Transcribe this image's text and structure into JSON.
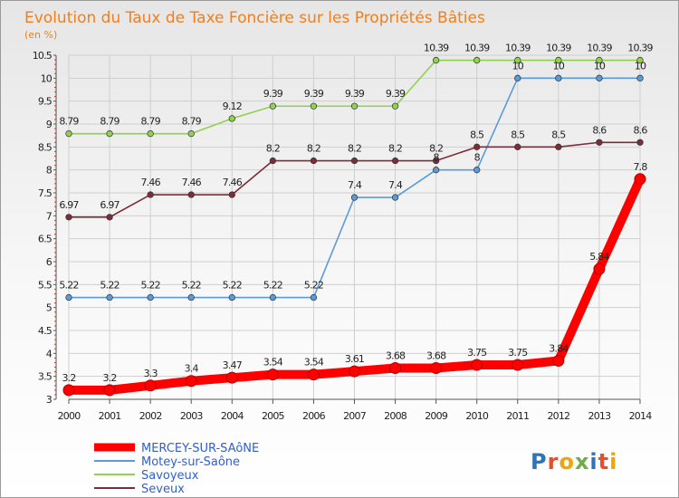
{
  "chart_data": {
    "type": "line",
    "title": "Evolution du Taux de Taxe Foncière sur les Propriétés Bâties",
    "ylabel": "(en %)",
    "xlabel": "",
    "x": [
      "2000",
      "2001",
      "2002",
      "2003",
      "2004",
      "2005",
      "2006",
      "2007",
      "2008",
      "2009",
      "2010",
      "2011",
      "2012",
      "2013",
      "2014"
    ],
    "ylim": [
      3,
      10.5
    ],
    "yticks": [
      "3",
      "3.5",
      "4",
      "4.5",
      "5",
      "5.5",
      "6",
      "6.5",
      "7",
      "7.5",
      "8",
      "8.5",
      "9",
      "9.5",
      "10",
      "10.5"
    ],
    "grid": true,
    "legend_position": "bottom-left",
    "series": [
      {
        "name": "MERCEY-SUR-SAôNE",
        "color": "#ff0000",
        "main": true,
        "values": [
          3.2,
          3.2,
          3.3,
          3.4,
          3.47,
          3.54,
          3.54,
          3.61,
          3.68,
          3.68,
          3.75,
          3.75,
          3.84,
          5.84,
          7.8
        ],
        "labels": [
          "3.2",
          "3.2",
          "3.3",
          "3.4",
          "3.47",
          "3.54",
          "3.54",
          "3.61",
          "3.68",
          "3.68",
          "3.75",
          "3.75",
          "3.84",
          "5.84",
          "7.8"
        ]
      },
      {
        "name": "Motey-sur-Saône",
        "color": "#5b9bd5",
        "main": false,
        "values": [
          5.22,
          5.22,
          5.22,
          5.22,
          5.22,
          5.22,
          5.22,
          7.4,
          7.4,
          8,
          8,
          10,
          10,
          10,
          10
        ],
        "labels": [
          "5.22",
          "5.22",
          "5.22",
          "5.22",
          "5.22",
          "5.22",
          "5.22",
          "7.4",
          "7.4",
          "8",
          "8",
          "10",
          "10",
          "10",
          "10"
        ]
      },
      {
        "name": "Savoyeux",
        "color": "#92d050",
        "main": false,
        "values": [
          8.79,
          8.79,
          8.79,
          8.79,
          9.12,
          9.39,
          9.39,
          9.39,
          9.39,
          10.39,
          10.39,
          10.39,
          10.39,
          10.39,
          10.39
        ],
        "labels": [
          "8.79",
          "8.79",
          "8.79",
          "8.79",
          "9.12",
          "9.39",
          "9.39",
          "9.39",
          "9.39",
          "10.39",
          "10.39",
          "10.39",
          "10.39",
          "10.39",
          "10.39"
        ]
      },
      {
        "name": "Seveux",
        "color": "#7b2d3a",
        "main": false,
        "values": [
          6.97,
          6.97,
          7.46,
          7.46,
          7.46,
          8.2,
          8.2,
          8.2,
          8.2,
          8.2,
          8.5,
          8.5,
          8.5,
          8.6,
          8.6
        ],
        "labels": [
          "6.97",
          "6.97",
          "7.46",
          "7.46",
          "7.46",
          "8.2",
          "8.2",
          "8.2",
          "8.2",
          "8.2",
          "8.5",
          "8.5",
          "8.5",
          "8.6",
          "8.6"
        ]
      }
    ]
  },
  "logo": {
    "text": "Proxiti"
  }
}
